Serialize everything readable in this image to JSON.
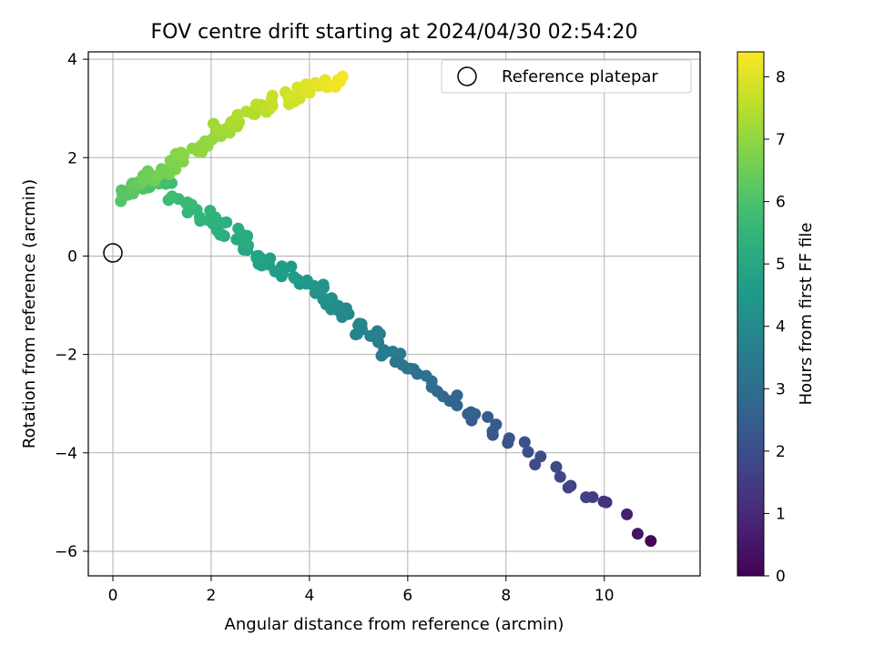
{
  "chart_data": {
    "type": "scatter",
    "title": "FOV centre drift starting at 2024/04/30 02:54:20",
    "xlabel": "Angular distance from reference (arcmin)",
    "ylabel": "Rotation from reference (arcmin)",
    "xlim": [
      -0.5,
      11.95
    ],
    "ylim": [
      -6.5,
      4.15
    ],
    "xticks": [
      0,
      2,
      4,
      6,
      8,
      10
    ],
    "yticks": [
      -6,
      -4,
      -2,
      0,
      2,
      4
    ],
    "xtick_labels": [
      "0",
      "2",
      "4",
      "6",
      "8",
      "10"
    ],
    "ytick_labels": [
      "−6",
      "−4",
      "−2",
      "0",
      "2",
      "4"
    ],
    "grid": true,
    "colormap": "viridis",
    "colorbar": {
      "label": "Hours from first FF file",
      "range": [
        0,
        8.4
      ],
      "ticks": [
        0,
        1,
        2,
        3,
        4,
        5,
        6,
        7,
        8
      ],
      "tick_labels": [
        "0",
        "1",
        "2",
        "3",
        "4",
        "5",
        "6",
        "7",
        "8"
      ]
    },
    "legend": {
      "position": "top-right",
      "label": "Reference platepar"
    },
    "reference_point": {
      "x": 0,
      "y": 0
    },
    "anchors": [
      {
        "x": 11.3,
        "y": -6.05,
        "t": 0.0
      },
      {
        "x": 10.2,
        "y": -5.1,
        "t": 0.9
      },
      {
        "x": 9.6,
        "y": -4.9,
        "t": 1.6
      },
      {
        "x": 8.0,
        "y": -3.7,
        "t": 2.2
      },
      {
        "x": 7.2,
        "y": -3.1,
        "t": 2.6
      },
      {
        "x": 6.0,
        "y": -2.3,
        "t": 3.2
      },
      {
        "x": 5.0,
        "y": -1.4,
        "t": 3.8
      },
      {
        "x": 4.0,
        "y": -0.6,
        "t": 4.4
      },
      {
        "x": 3.0,
        "y": -0.1,
        "t": 4.8
      },
      {
        "x": 2.5,
        "y": 0.45,
        "t": 5.2
      },
      {
        "x": 1.8,
        "y": 0.85,
        "t": 5.5
      },
      {
        "x": 1.0,
        "y": 1.5,
        "t": 5.85
      },
      {
        "x": 0.2,
        "y": 1.2,
        "t": 6.1
      },
      {
        "x": 0.4,
        "y": 1.5,
        "t": 6.35
      },
      {
        "x": 1.0,
        "y": 1.7,
        "t": 6.6
      },
      {
        "x": 1.5,
        "y": 2.1,
        "t": 6.9
      },
      {
        "x": 2.2,
        "y": 2.6,
        "t": 7.2
      },
      {
        "x": 3.0,
        "y": 3.0,
        "t": 7.5
      },
      {
        "x": 3.7,
        "y": 3.3,
        "t": 7.85
      },
      {
        "x": 4.6,
        "y": 3.58,
        "t": 8.3
      }
    ],
    "points_between_anchors": [
      3,
      3,
      10,
      8,
      12,
      18,
      22,
      14,
      14,
      14,
      12,
      10,
      10,
      12,
      12,
      14,
      16,
      16,
      16
    ]
  }
}
